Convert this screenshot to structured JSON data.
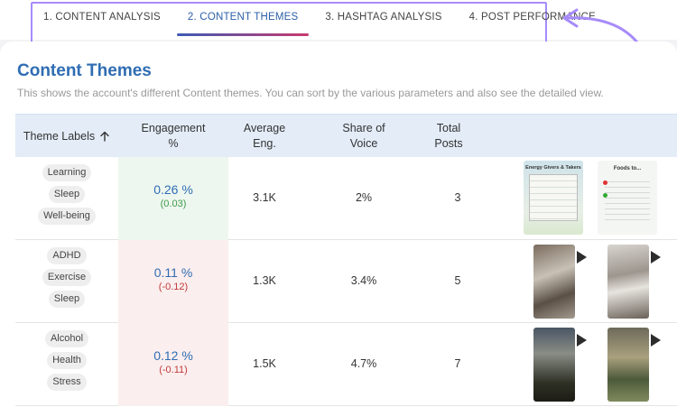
{
  "tabs": [
    {
      "label": "1. CONTENT ANALYSIS",
      "active": false
    },
    {
      "label": "2. CONTENT THEMES",
      "active": true
    },
    {
      "label": "3. HASHTAG ANALYSIS",
      "active": false
    },
    {
      "label": "4. POST PERFORMANCE",
      "active": false
    }
  ],
  "section": {
    "title": "Content Themes",
    "subtitle": "This shows the account's different Content themes. You can sort by the various parameters and also see the detailed view."
  },
  "table": {
    "headers": {
      "theme": "Theme Labels",
      "engagement_1": "Engagement",
      "engagement_2": "%",
      "avg_1": "Average",
      "avg_2": "Eng.",
      "share_1": "Share of",
      "share_2": "Voice",
      "posts_1": "Total",
      "posts_2": "Posts",
      "sort_icon": "arrow-up-icon"
    },
    "rows": [
      {
        "labels": [
          "Learning",
          "Sleep",
          "Well-being"
        ],
        "engagement": "0.26 %",
        "delta": "(0.03)",
        "trend": "positive",
        "avg": "3.1K",
        "share": "2%",
        "posts": "3"
      },
      {
        "labels": [
          "ADHD",
          "Exercise",
          "Sleep"
        ],
        "engagement": "0.11 %",
        "delta": "(-0.12)",
        "trend": "negative",
        "avg": "1.3K",
        "share": "3.4%",
        "posts": "5"
      },
      {
        "labels": [
          "Alcohol",
          "Health",
          "Stress"
        ],
        "engagement": "0.12 %",
        "delta": "(-0.11)",
        "trend": "negative",
        "avg": "1.5K",
        "share": "4.7%",
        "posts": "7"
      }
    ]
  },
  "thumbnails": {
    "row1": {
      "left_title": "Energy Givers & Takers",
      "right_title": "Foods to..."
    }
  },
  "colors": {
    "accent": "#2f6db3",
    "highlight_border": "#a78bfa",
    "positive": "#3d9a4a",
    "negative": "#c23a3a"
  }
}
